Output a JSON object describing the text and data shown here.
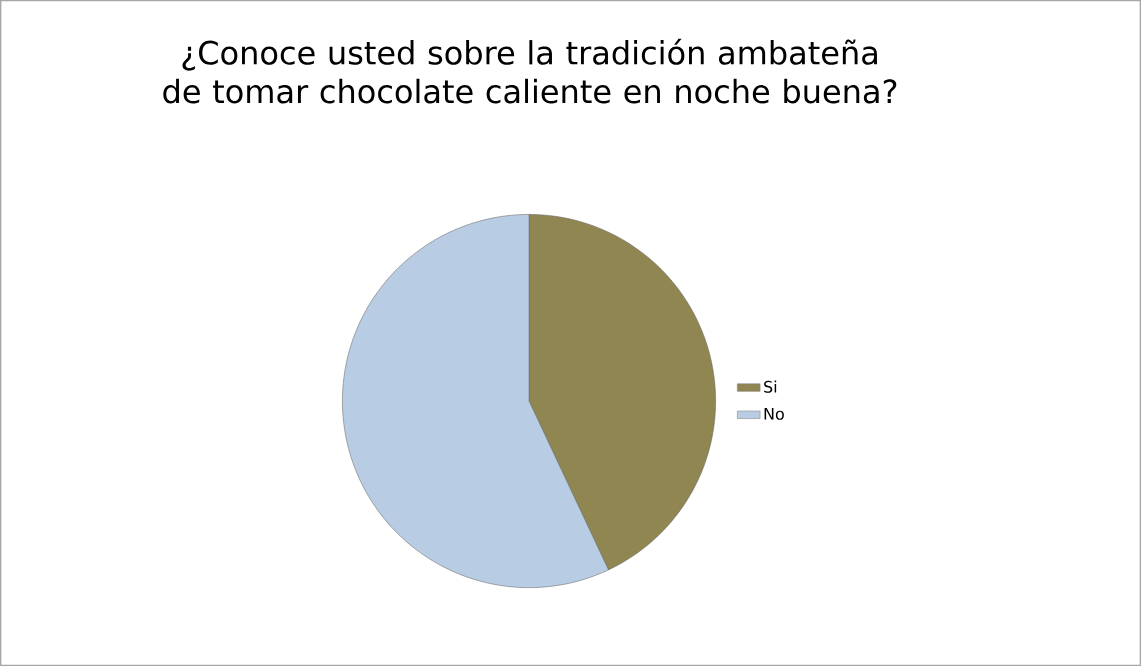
{
  "chart_data": {
    "type": "pie",
    "title": "¿Conoce usted sobre la tradición ambateña de tomar chocolate caliente en noche buena?",
    "categories": [
      "Si",
      "No"
    ],
    "values": [
      43,
      57
    ],
    "colors": [
      "#8f8652",
      "#b8cce4"
    ],
    "legend": "right"
  }
}
